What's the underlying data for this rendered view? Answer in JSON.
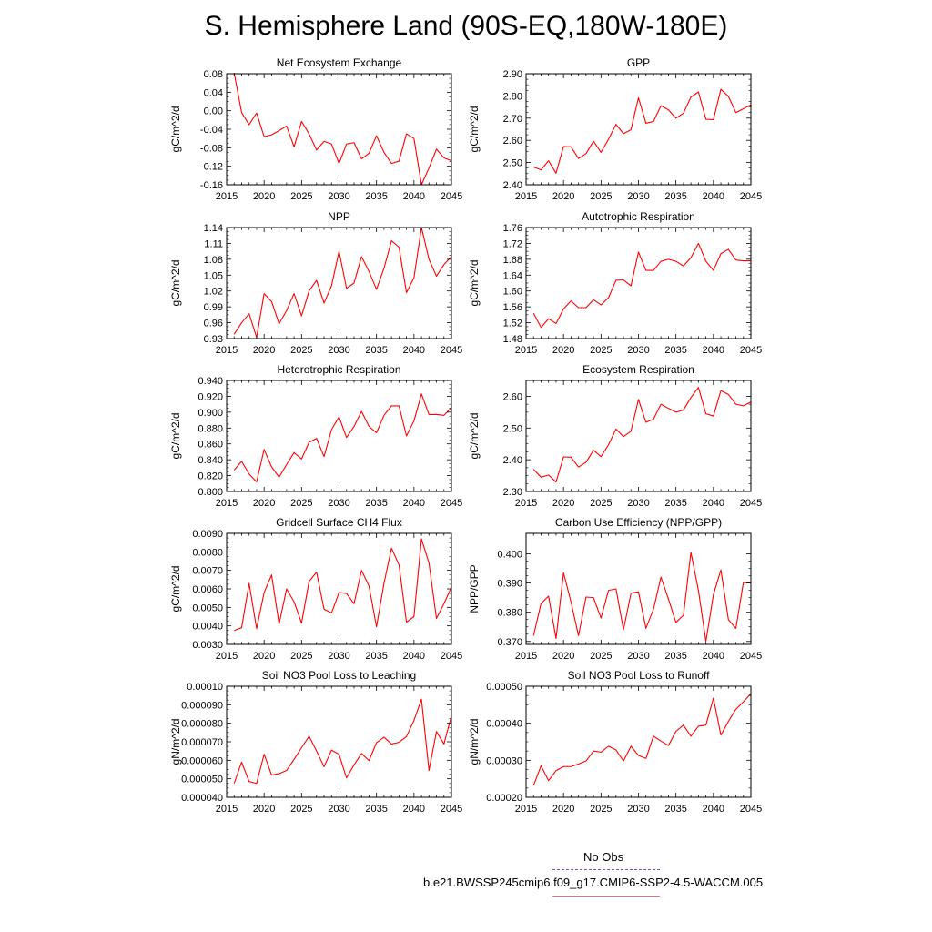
{
  "title": "S. Hemisphere Land (90S-EQ,180W-180E)",
  "legend": {
    "entries": [
      {
        "label": "No Obs",
        "color": "#5b5bd6",
        "style": "dashed"
      },
      {
        "label": "b.e21.BWSSP245cmip6.f09_g17.CMIP6-SSP2-4.5-WACCM.005",
        "color": "#e8707a",
        "style": "solid"
      }
    ]
  },
  "chart_data": [
    {
      "type": "line",
      "title": "Net Ecosystem Exchange",
      "ylabel": "gC/m^2/d",
      "x": [
        2016,
        2017,
        2018,
        2019,
        2020,
        2021,
        2022,
        2023,
        2024,
        2025,
        2026,
        2027,
        2028,
        2029,
        2030,
        2031,
        2032,
        2033,
        2034,
        2035,
        2036,
        2037,
        2038,
        2039,
        2040,
        2041,
        2042,
        2043,
        2044,
        2045
      ],
      "series": [
        {
          "color": "#ff0000",
          "values": [
            0.082,
            -0.004,
            -0.03,
            -0.005,
            -0.056,
            -0.052,
            -0.043,
            -0.033,
            -0.078,
            -0.023,
            -0.05,
            -0.085,
            -0.066,
            -0.072,
            -0.114,
            -0.072,
            -0.069,
            -0.104,
            -0.092,
            -0.054,
            -0.09,
            -0.114,
            -0.109,
            -0.05,
            -0.06,
            -0.16,
            -0.124,
            -0.083,
            -0.102,
            -0.108
          ]
        }
      ],
      "xlim": [
        2015,
        2045
      ],
      "ylim": [
        -0.16,
        0.08
      ],
      "xticks": [
        "2015",
        "2020",
        "2025",
        "2030",
        "2035",
        "2040",
        "2045"
      ],
      "yticks": [
        "0.08",
        "0.04",
        "0.00",
        "-0.04",
        "-0.08",
        "-0.12",
        "-0.16"
      ]
    },
    {
      "type": "line",
      "title": "GPP",
      "ylabel": "gC/m^2/d",
      "x": [
        2016,
        2017,
        2018,
        2019,
        2020,
        2021,
        2022,
        2023,
        2024,
        2025,
        2026,
        2027,
        2028,
        2029,
        2030,
        2031,
        2032,
        2033,
        2034,
        2035,
        2036,
        2037,
        2038,
        2039,
        2040,
        2041,
        2042,
        2043,
        2044,
        2045
      ],
      "series": [
        {
          "color": "#ff0000",
          "values": [
            2.48,
            2.467,
            2.508,
            2.452,
            2.572,
            2.571,
            2.518,
            2.54,
            2.596,
            2.546,
            2.605,
            2.672,
            2.63,
            2.648,
            2.792,
            2.677,
            2.685,
            2.756,
            2.737,
            2.7,
            2.722,
            2.795,
            2.818,
            2.695,
            2.693,
            2.83,
            2.798,
            2.725,
            2.742,
            2.76
          ]
        }
      ],
      "xlim": [
        2015,
        2045
      ],
      "ylim": [
        2.4,
        2.9
      ],
      "xticks": [
        "2015",
        "2020",
        "2025",
        "2030",
        "2035",
        "2040",
        "2045"
      ],
      "yticks": [
        "2.90",
        "2.80",
        "2.70",
        "2.60",
        "2.50",
        "2.40"
      ]
    },
    {
      "type": "line",
      "title": "NPP",
      "ylabel": "gC/m^2/d",
      "x": [
        2016,
        2017,
        2018,
        2019,
        2020,
        2021,
        2022,
        2023,
        2024,
        2025,
        2026,
        2027,
        2028,
        2029,
        2030,
        2031,
        2032,
        2033,
        2034,
        2035,
        2036,
        2037,
        2038,
        2039,
        2040,
        2041,
        2042,
        2043,
        2044,
        2045
      ],
      "series": [
        {
          "color": "#ff0000",
          "values": [
            0.938,
            0.96,
            0.977,
            0.932,
            1.015,
            1.0,
            0.958,
            0.983,
            1.015,
            0.973,
            1.02,
            1.04,
            0.997,
            1.03,
            1.095,
            1.025,
            1.035,
            1.085,
            1.057,
            1.023,
            1.063,
            1.115,
            1.103,
            1.017,
            1.045,
            1.14,
            1.08,
            1.048,
            1.07,
            1.085
          ]
        }
      ],
      "xlim": [
        2015,
        2045
      ],
      "ylim": [
        0.93,
        1.14
      ],
      "xticks": [
        "2015",
        "2020",
        "2025",
        "2030",
        "2035",
        "2040",
        "2045"
      ],
      "yticks": [
        "1.14",
        "1.11",
        "1.08",
        "1.05",
        "1.02",
        "0.99",
        "0.96",
        "0.93"
      ]
    },
    {
      "type": "line",
      "title": "Autotrophic Respiration",
      "ylabel": "gC/m^2/d",
      "x": [
        2016,
        2017,
        2018,
        2019,
        2020,
        2021,
        2022,
        2023,
        2024,
        2025,
        2026,
        2027,
        2028,
        2029,
        2030,
        2031,
        2032,
        2033,
        2034,
        2035,
        2036,
        2037,
        2038,
        2039,
        2040,
        2041,
        2042,
        2043,
        2044,
        2045
      ],
      "series": [
        {
          "color": "#ff0000",
          "values": [
            1.544,
            1.508,
            1.53,
            1.518,
            1.555,
            1.575,
            1.558,
            1.558,
            1.578,
            1.565,
            1.583,
            1.627,
            1.628,
            1.613,
            1.698,
            1.652,
            1.652,
            1.675,
            1.68,
            1.675,
            1.663,
            1.684,
            1.72,
            1.675,
            1.652,
            1.694,
            1.705,
            1.678,
            1.676,
            1.676
          ]
        }
      ],
      "xlim": [
        2015,
        2045
      ],
      "ylim": [
        1.48,
        1.76
      ],
      "xticks": [
        "2015",
        "2020",
        "2025",
        "2030",
        "2035",
        "2040",
        "2045"
      ],
      "yticks": [
        "1.76",
        "1.72",
        "1.68",
        "1.64",
        "1.60",
        "1.56",
        "1.52",
        "1.48"
      ]
    },
    {
      "type": "line",
      "title": "Heterotrophic Respiration",
      "ylabel": "gC/m^2/d",
      "x": [
        2016,
        2017,
        2018,
        2019,
        2020,
        2021,
        2022,
        2023,
        2024,
        2025,
        2026,
        2027,
        2028,
        2029,
        2030,
        2031,
        2032,
        2033,
        2034,
        2035,
        2036,
        2037,
        2038,
        2039,
        2040,
        2041,
        2042,
        2043,
        2044,
        2045
      ],
      "series": [
        {
          "color": "#ff0000",
          "values": [
            0.827,
            0.838,
            0.822,
            0.812,
            0.853,
            0.831,
            0.818,
            0.834,
            0.849,
            0.841,
            0.862,
            0.867,
            0.844,
            0.878,
            0.894,
            0.868,
            0.882,
            0.901,
            0.882,
            0.874,
            0.896,
            0.908,
            0.908,
            0.87,
            0.889,
            0.923,
            0.897,
            0.897,
            0.896,
            0.906
          ]
        }
      ],
      "xlim": [
        2015,
        2045
      ],
      "ylim": [
        0.8,
        0.94
      ],
      "xticks": [
        "2015",
        "2020",
        "2025",
        "2030",
        "2035",
        "2040",
        "2045"
      ],
      "yticks": [
        "0.940",
        "0.920",
        "0.900",
        "0.880",
        "0.860",
        "0.840",
        "0.820",
        "0.800"
      ]
    },
    {
      "type": "line",
      "title": "Ecosystem Respiration",
      "ylabel": "gC/m^2/d",
      "x": [
        2016,
        2017,
        2018,
        2019,
        2020,
        2021,
        2022,
        2023,
        2024,
        2025,
        2026,
        2027,
        2028,
        2029,
        2030,
        2031,
        2032,
        2033,
        2034,
        2035,
        2036,
        2037,
        2038,
        2039,
        2040,
        2041,
        2042,
        2043,
        2044,
        2045
      ],
      "series": [
        {
          "color": "#ff0000",
          "values": [
            2.37,
            2.345,
            2.352,
            2.33,
            2.409,
            2.408,
            2.377,
            2.392,
            2.43,
            2.41,
            2.447,
            2.497,
            2.473,
            2.49,
            2.59,
            2.518,
            2.528,
            2.575,
            2.562,
            2.55,
            2.557,
            2.596,
            2.628,
            2.545,
            2.538,
            2.618,
            2.606,
            2.575,
            2.57,
            2.582
          ]
        }
      ],
      "xlim": [
        2015,
        2045
      ],
      "ylim": [
        2.3,
        2.65
      ],
      "xticks": [
        "2015",
        "2020",
        "2025",
        "2030",
        "2035",
        "2040",
        "2045"
      ],
      "yticks": [
        "2.60",
        "2.50",
        "2.40",
        "2.30"
      ]
    },
    {
      "type": "line",
      "title": "Gridcell Surface CH4 Flux",
      "ylabel": "gC/m^2/d",
      "x": [
        2016,
        2017,
        2018,
        2019,
        2020,
        2021,
        2022,
        2023,
        2024,
        2025,
        2026,
        2027,
        2028,
        2029,
        2030,
        2031,
        2032,
        2033,
        2034,
        2035,
        2036,
        2037,
        2038,
        2039,
        2040,
        2041,
        2042,
        2043,
        2044,
        2045
      ],
      "series": [
        {
          "color": "#ff0000",
          "values": [
            0.00375,
            0.0039,
            0.0063,
            0.00385,
            0.0058,
            0.00675,
            0.0041,
            0.006,
            0.0053,
            0.00415,
            0.0064,
            0.0069,
            0.0049,
            0.0047,
            0.0058,
            0.00575,
            0.0052,
            0.007,
            0.00615,
            0.00395,
            0.0063,
            0.0082,
            0.0073,
            0.0042,
            0.0045,
            0.0087,
            0.0074,
            0.0044,
            0.0052,
            0.0061
          ]
        }
      ],
      "xlim": [
        2015,
        2045
      ],
      "ylim": [
        0.003,
        0.009
      ],
      "xticks": [
        "2015",
        "2020",
        "2025",
        "2030",
        "2035",
        "2040",
        "2045"
      ],
      "yticks": [
        "0.0090",
        "0.0080",
        "0.0070",
        "0.0060",
        "0.0050",
        "0.0040",
        "0.0030"
      ]
    },
    {
      "type": "line",
      "title": "Carbon Use Efficiency (NPP/GPP)",
      "ylabel": "NPP/GPP",
      "x": [
        2016,
        2017,
        2018,
        2019,
        2020,
        2021,
        2022,
        2023,
        2024,
        2025,
        2026,
        2027,
        2028,
        2029,
        2030,
        2031,
        2032,
        2033,
        2034,
        2035,
        2036,
        2037,
        2038,
        2039,
        2040,
        2041,
        2042,
        2043,
        2044,
        2045
      ],
      "series": [
        {
          "color": "#ff0000",
          "values": [
            0.372,
            0.383,
            0.3855,
            0.371,
            0.3935,
            0.3835,
            0.372,
            0.3852,
            0.385,
            0.378,
            0.3875,
            0.388,
            0.374,
            0.3865,
            0.387,
            0.3745,
            0.381,
            0.392,
            0.3845,
            0.3765,
            0.379,
            0.4005,
            0.3875,
            0.37,
            0.386,
            0.3945,
            0.3775,
            0.3745,
            0.3902,
            0.39
          ]
        }
      ],
      "xlim": [
        2015,
        2045
      ],
      "ylim": [
        0.369,
        0.407
      ],
      "xticks": [
        "2015",
        "2020",
        "2025",
        "2030",
        "2035",
        "2040",
        "2045"
      ],
      "yticks": [
        "0.400",
        "0.390",
        "0.380",
        "0.370"
      ]
    },
    {
      "type": "line",
      "title": "Soil NO3 Pool Loss to Leaching",
      "ylabel": "gN/m^2/d",
      "x": [
        2016,
        2017,
        2018,
        2019,
        2020,
        2021,
        2022,
        2023,
        2024,
        2025,
        2026,
        2027,
        2028,
        2029,
        2030,
        2031,
        2032,
        2033,
        2034,
        2035,
        2036,
        2037,
        2038,
        2039,
        2040,
        2041,
        2042,
        2043,
        2044,
        2045
      ],
      "series": [
        {
          "color": "#ff0000",
          "values": [
            4.75e-05,
            5.9e-05,
            4.85e-05,
            4.75e-05,
            6.33e-05,
            5.2e-05,
            5.28e-05,
            5.45e-05,
            6.05e-05,
            6.68e-05,
            7.3e-05,
            6.5e-05,
            5.65e-05,
            6.55e-05,
            6.32e-05,
            5.05e-05,
            5.75e-05,
            6.37e-05,
            5.98e-05,
            6.95e-05,
            7.25e-05,
            6.88e-05,
            6.97e-05,
            7.28e-05,
            8.15e-05,
            9.3e-05,
            5.45e-05,
            7.55e-05,
            6.88e-05,
            8.4e-05
          ]
        }
      ],
      "xlim": [
        2015,
        2045
      ],
      "ylim": [
        4e-05,
        0.0001
      ],
      "xticks": [
        "2015",
        "2020",
        "2025",
        "2030",
        "2035",
        "2040",
        "2045"
      ],
      "yticks": [
        "0.00010",
        "0.000090",
        "0.000080",
        "0.000070",
        "0.000060",
        "0.000050",
        "0.000040"
      ]
    },
    {
      "type": "line",
      "title": "Soil NO3 Pool Loss to Runoff",
      "ylabel": "gN/m^2/d",
      "x": [
        2016,
        2017,
        2018,
        2019,
        2020,
        2021,
        2022,
        2023,
        2024,
        2025,
        2026,
        2027,
        2028,
        2029,
        2030,
        2031,
        2032,
        2033,
        2034,
        2035,
        2036,
        2037,
        2038,
        2039,
        2040,
        2041,
        2042,
        2043,
        2044,
        2045
      ],
      "series": [
        {
          "color": "#ff0000",
          "values": [
            0.000232,
            0.000285,
            0.000245,
            0.000272,
            0.000283,
            0.000283,
            0.00029,
            0.000298,
            0.000325,
            0.000322,
            0.000338,
            0.000328,
            0.000298,
            0.000338,
            0.000313,
            0.000305,
            0.000365,
            0.000352,
            0.00034,
            0.000378,
            0.000395,
            0.000365,
            0.000392,
            0.000395,
            0.000468,
            0.000368,
            0.000405,
            0.000438,
            0.000458,
            0.00048
          ]
        }
      ],
      "xlim": [
        2015,
        2045
      ],
      "ylim": [
        0.0002,
        0.0005
      ],
      "xticks": [
        "2015",
        "2020",
        "2025",
        "2030",
        "2035",
        "2040",
        "2045"
      ],
      "yticks": [
        "0.00050",
        "0.00040",
        "0.00030",
        "0.00020"
      ]
    }
  ]
}
